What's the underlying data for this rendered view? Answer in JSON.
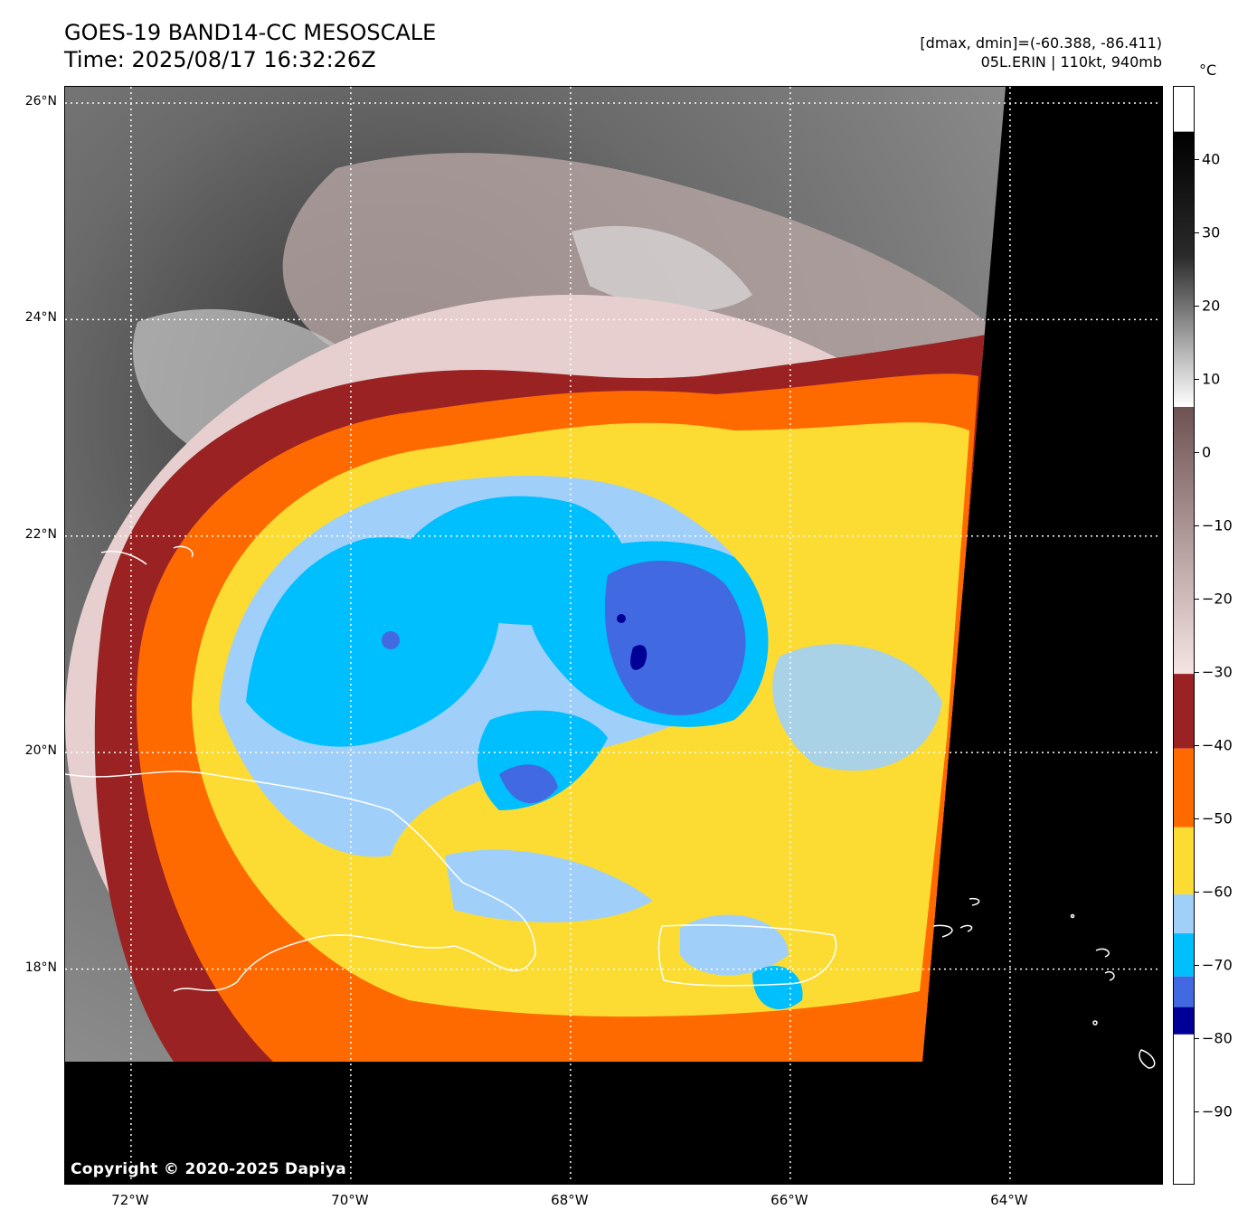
{
  "header": {
    "title": "GOES-19 BAND14-CC MESOSCALE",
    "time": "Time: 2025/08/17 16:32:26Z",
    "dminmax": "[dmax, dmin]=(-60.388, -86.411)",
    "storm": "05L.ERIN | 110kt, 940mb"
  },
  "map": {
    "copyright": "Copyright © 2020-2025 Dapiya",
    "lat_labels": [
      "26°N",
      "24°N",
      "22°N",
      "20°N",
      "18°N"
    ],
    "lon_labels": [
      "72°W",
      "70°W",
      "68°W",
      "66°W",
      "64°W"
    ],
    "extent": {
      "lon_min": -72.6,
      "lon_max": -62.6,
      "lat_min": 16.0,
      "lat_max": 26.15
    },
    "storm_center": {
      "lon": -67.6,
      "lat": 21.0
    }
  },
  "colorbar": {
    "unit": "°C",
    "ticks": [
      "40",
      "30",
      "20",
      "10",
      "0",
      "−10",
      "−20",
      "−30",
      "−40",
      "−50",
      "−60",
      "−70",
      "−80",
      "−90"
    ],
    "range": [
      -100,
      50
    ],
    "colors": {
      "warm_black": "#000000",
      "gray": "#808080",
      "white": "#ffffff",
      "mauve": "#7a5a5a",
      "pink": "#f5dcdc",
      "dark_red": "#9a2222",
      "orange": "#ff6a00",
      "yellow": "#fcdc32",
      "light_blue": "#a0d0fa",
      "sky_blue": "#00bfff",
      "royal_blue": "#4169e1",
      "navy": "#000096"
    }
  }
}
